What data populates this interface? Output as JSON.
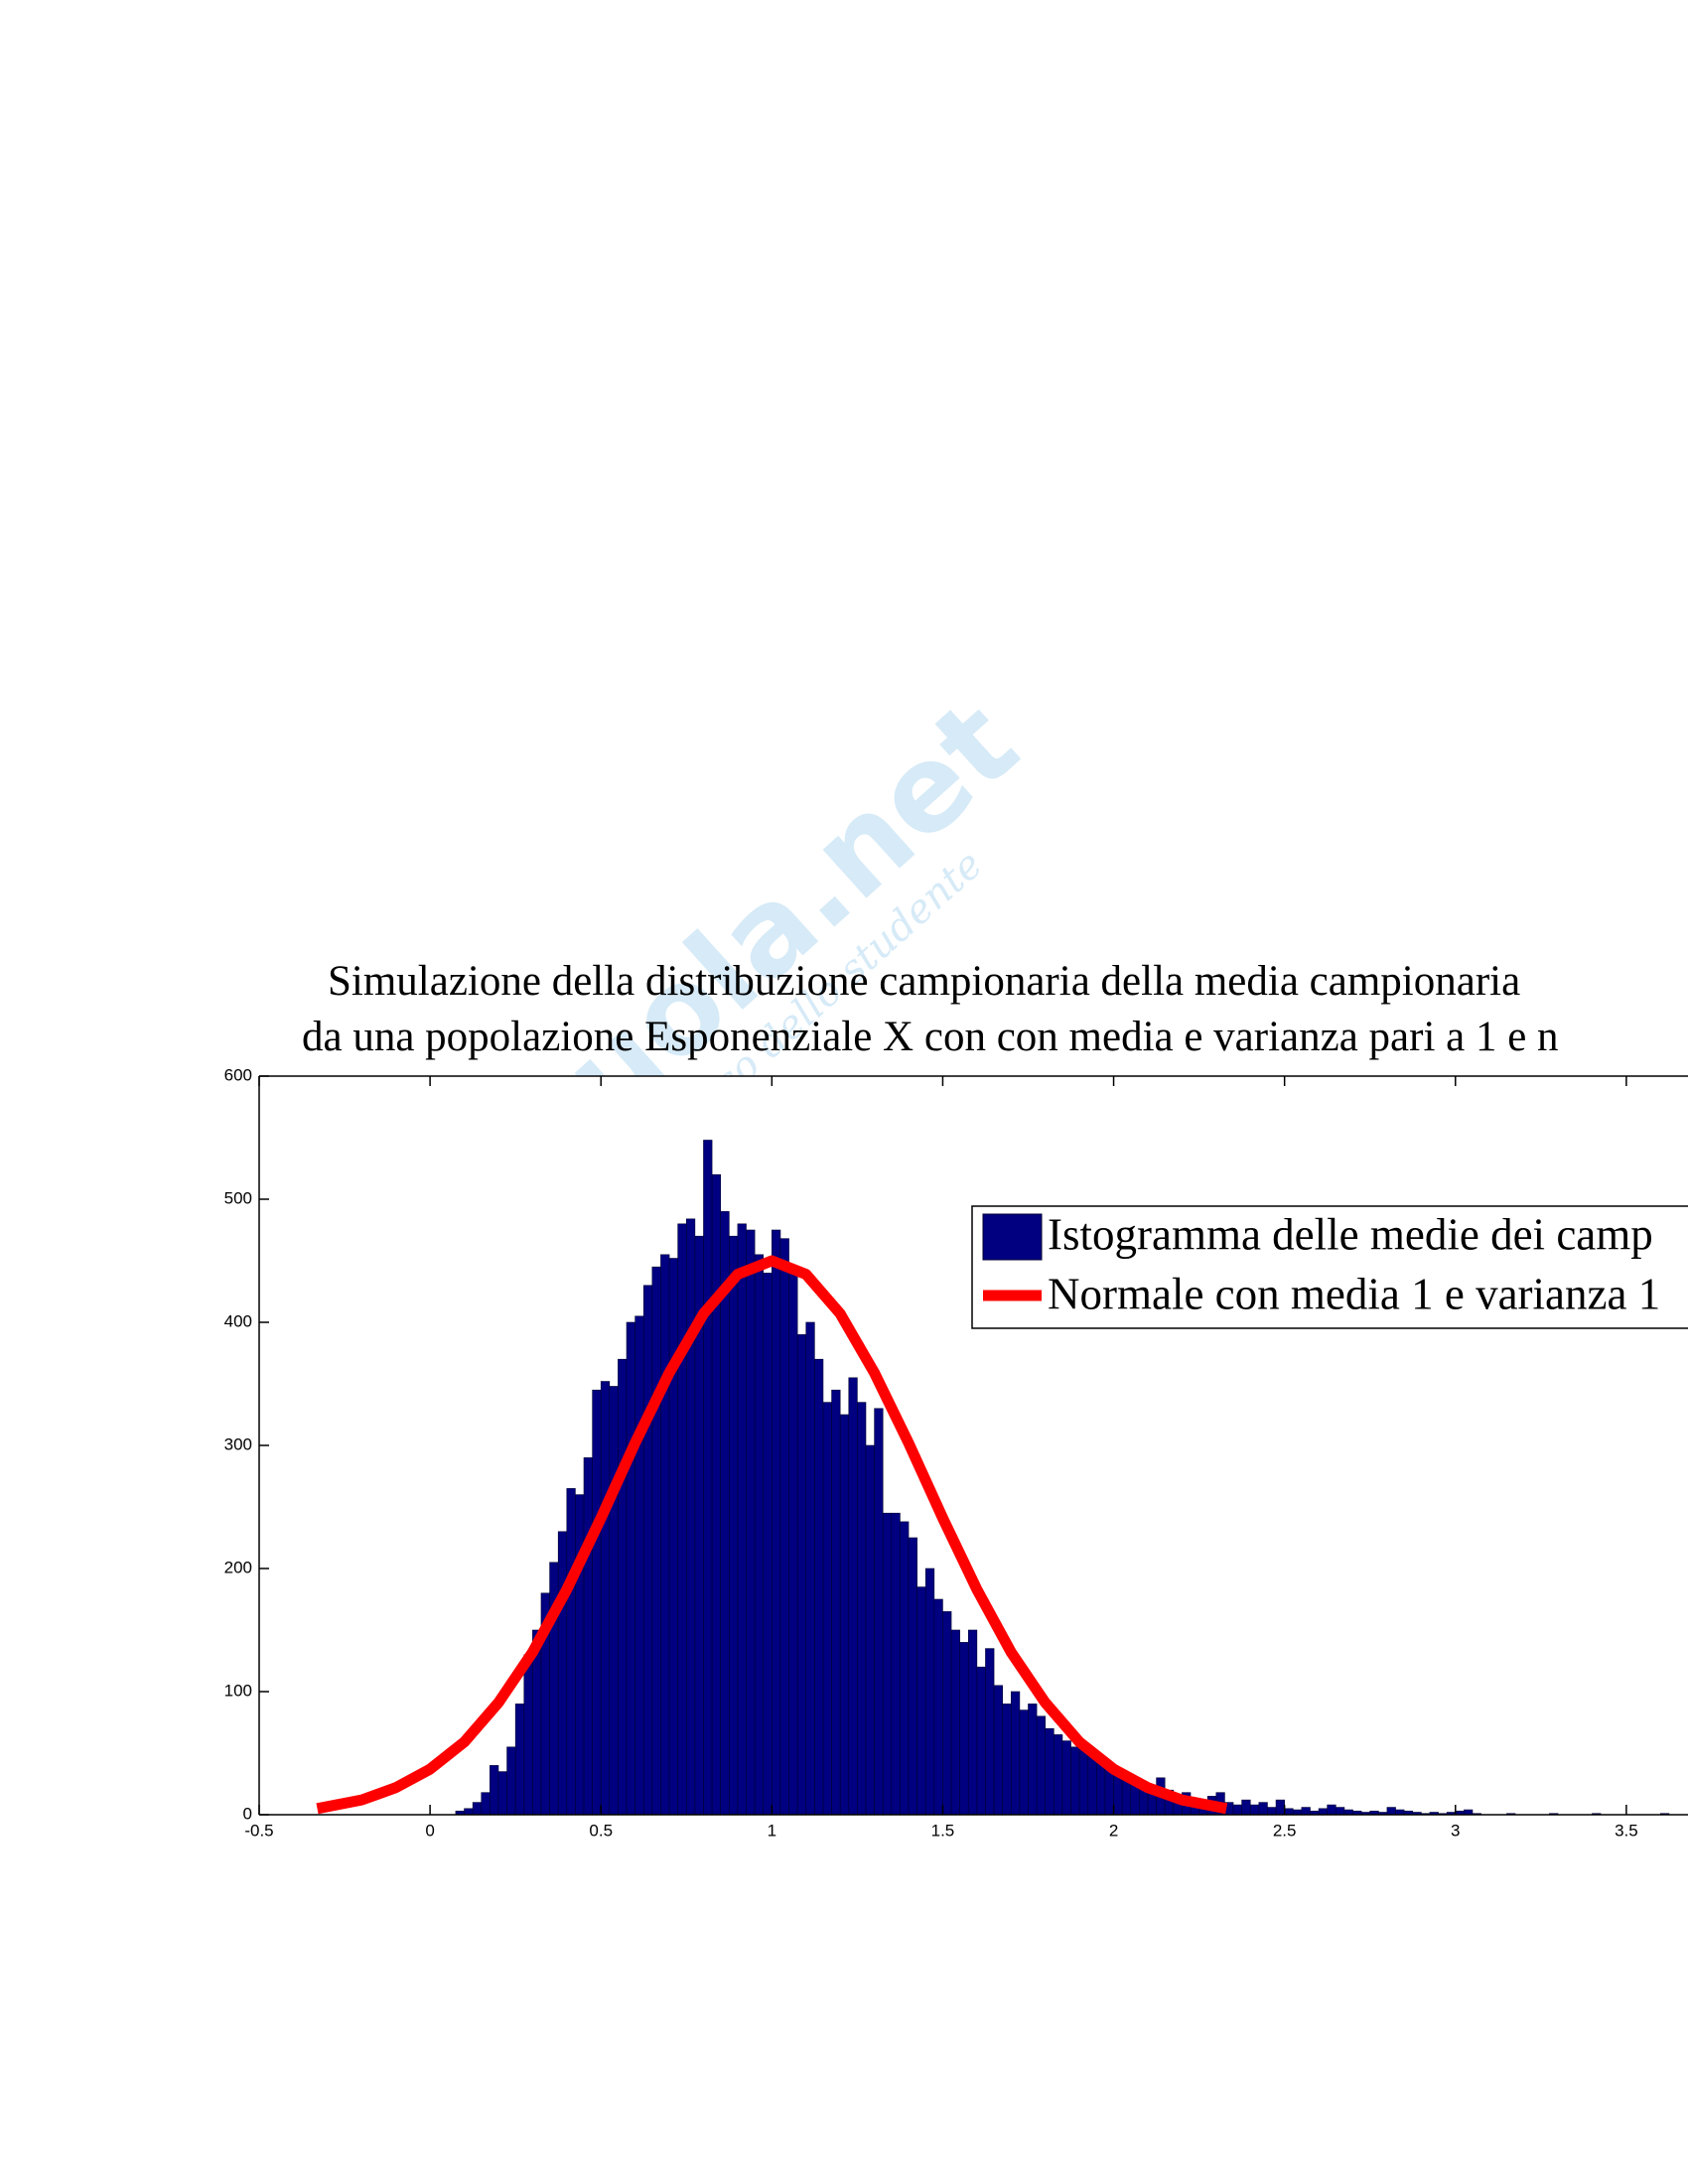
{
  "watermark": {
    "title": "Skuola.net",
    "subtitle": "il paradiso dello studente"
  },
  "chart_data": {
    "type": "histogram",
    "title": "Simulazione della distribuzione campionaria della media campionaria",
    "subtitle": "da una popolazione Esponenziale X con con media e varianza pari a 1 e n",
    "name": "Istogramma delle medie dei camp",
    "color": "#000080",
    "edge_color": "#000033",
    "xlim": [
      -0.5,
      4
    ],
    "xticks": [
      -0.5,
      0,
      0.5,
      1,
      1.5,
      2,
      2.5,
      3,
      3.5
    ],
    "ylim": [
      0,
      600
    ],
    "yticks": [
      0,
      100,
      200,
      300,
      400,
      500,
      600
    ],
    "grid": false,
    "legend": "upper right",
    "bins": [
      0.075,
      0.1,
      0.125,
      0.15,
      0.175,
      0.2,
      0.225,
      0.25,
      0.275,
      0.3,
      0.325,
      0.35,
      0.375,
      0.4,
      0.425,
      0.45,
      0.475,
      0.5,
      0.525,
      0.55,
      0.575,
      0.6,
      0.625,
      0.65,
      0.675,
      0.7,
      0.725,
      0.75,
      0.775,
      0.8,
      0.825,
      0.85,
      0.875,
      0.9,
      0.925,
      0.95,
      0.975,
      1.0,
      1.025,
      1.05,
      1.075,
      1.1,
      1.125,
      1.15,
      1.175,
      1.2,
      1.225,
      1.25,
      1.275,
      1.3,
      1.325,
      1.35,
      1.375,
      1.4,
      1.425,
      1.45,
      1.475,
      1.5,
      1.525,
      1.55,
      1.575,
      1.6,
      1.625,
      1.65,
      1.675,
      1.7,
      1.725,
      1.75,
      1.775,
      1.8,
      1.825,
      1.85,
      1.875,
      1.9,
      1.925,
      1.95,
      1.975,
      2.0,
      2.025,
      2.05,
      2.075,
      2.1,
      2.125,
      2.15,
      2.175,
      2.2,
      2.225,
      2.25,
      2.275,
      2.3,
      2.325,
      2.35,
      2.375,
      2.4,
      2.425,
      2.45,
      2.475,
      2.5,
      2.525,
      2.55,
      2.575,
      2.6,
      2.625,
      2.65,
      2.675,
      2.7,
      2.725,
      2.75,
      2.775,
      2.8,
      2.825,
      2.85,
      2.875,
      2.9,
      2.925,
      2.95,
      2.975,
      3.0,
      3.025,
      3.05,
      3.075,
      3.1,
      3.125,
      3.15,
      3.175,
      3.2,
      3.225,
      3.25,
      3.275,
      3.3,
      3.325,
      3.35,
      3.375,
      3.4,
      3.425,
      3.45,
      3.475,
      3.5,
      3.525,
      3.55,
      3.575,
      3.6,
      3.625,
      3.65
    ],
    "counts": [
      3,
      5,
      10,
      18,
      40,
      35,
      55,
      90,
      130,
      150,
      180,
      205,
      230,
      265,
      260,
      290,
      345,
      352,
      348,
      370,
      400,
      405,
      430,
      445,
      455,
      452,
      480,
      484,
      470,
      548,
      520,
      490,
      470,
      480,
      475,
      455,
      440,
      475,
      468,
      440,
      390,
      400,
      370,
      335,
      345,
      325,
      355,
      335,
      300,
      330,
      245,
      245,
      238,
      225,
      185,
      200,
      175,
      165,
      150,
      140,
      150,
      120,
      135,
      105,
      90,
      100,
      85,
      90,
      80,
      70,
      65,
      60,
      55,
      55,
      50,
      45,
      40,
      35,
      30,
      28,
      25,
      22,
      30,
      20,
      15,
      18,
      12,
      10,
      15,
      18,
      10,
      8,
      12,
      8,
      10,
      6,
      12,
      5,
      4,
      6,
      3,
      5,
      8,
      6,
      4,
      3,
      2,
      3,
      2,
      6,
      4,
      3,
      2,
      1,
      2,
      1,
      2,
      3,
      4,
      1,
      0,
      0,
      0,
      1,
      0,
      0,
      0,
      0,
      1,
      0,
      0,
      0,
      0,
      1,
      0,
      0,
      0,
      0,
      0,
      0,
      0,
      1,
      0
    ],
    "overlay": {
      "type": "line",
      "name": "Normale con media 1 e varianza 1",
      "color": "#ff0000",
      "x": [
        -0.33,
        -0.2,
        -0.1,
        0,
        0.1,
        0.2,
        0.3,
        0.4,
        0.5,
        0.6,
        0.7,
        0.8,
        0.9,
        1,
        1.1,
        1.2,
        1.3,
        1.4,
        1.5,
        1.6,
        1.7,
        1.8,
        1.9,
        2,
        2.1,
        2.2,
        2.33
      ],
      "values": [
        5,
        12,
        22,
        37,
        59,
        91,
        132,
        183,
        241,
        302,
        359,
        407,
        439,
        450,
        439,
        407,
        359,
        302,
        241,
        183,
        132,
        91,
        59,
        37,
        22,
        12,
        5
      ]
    }
  }
}
